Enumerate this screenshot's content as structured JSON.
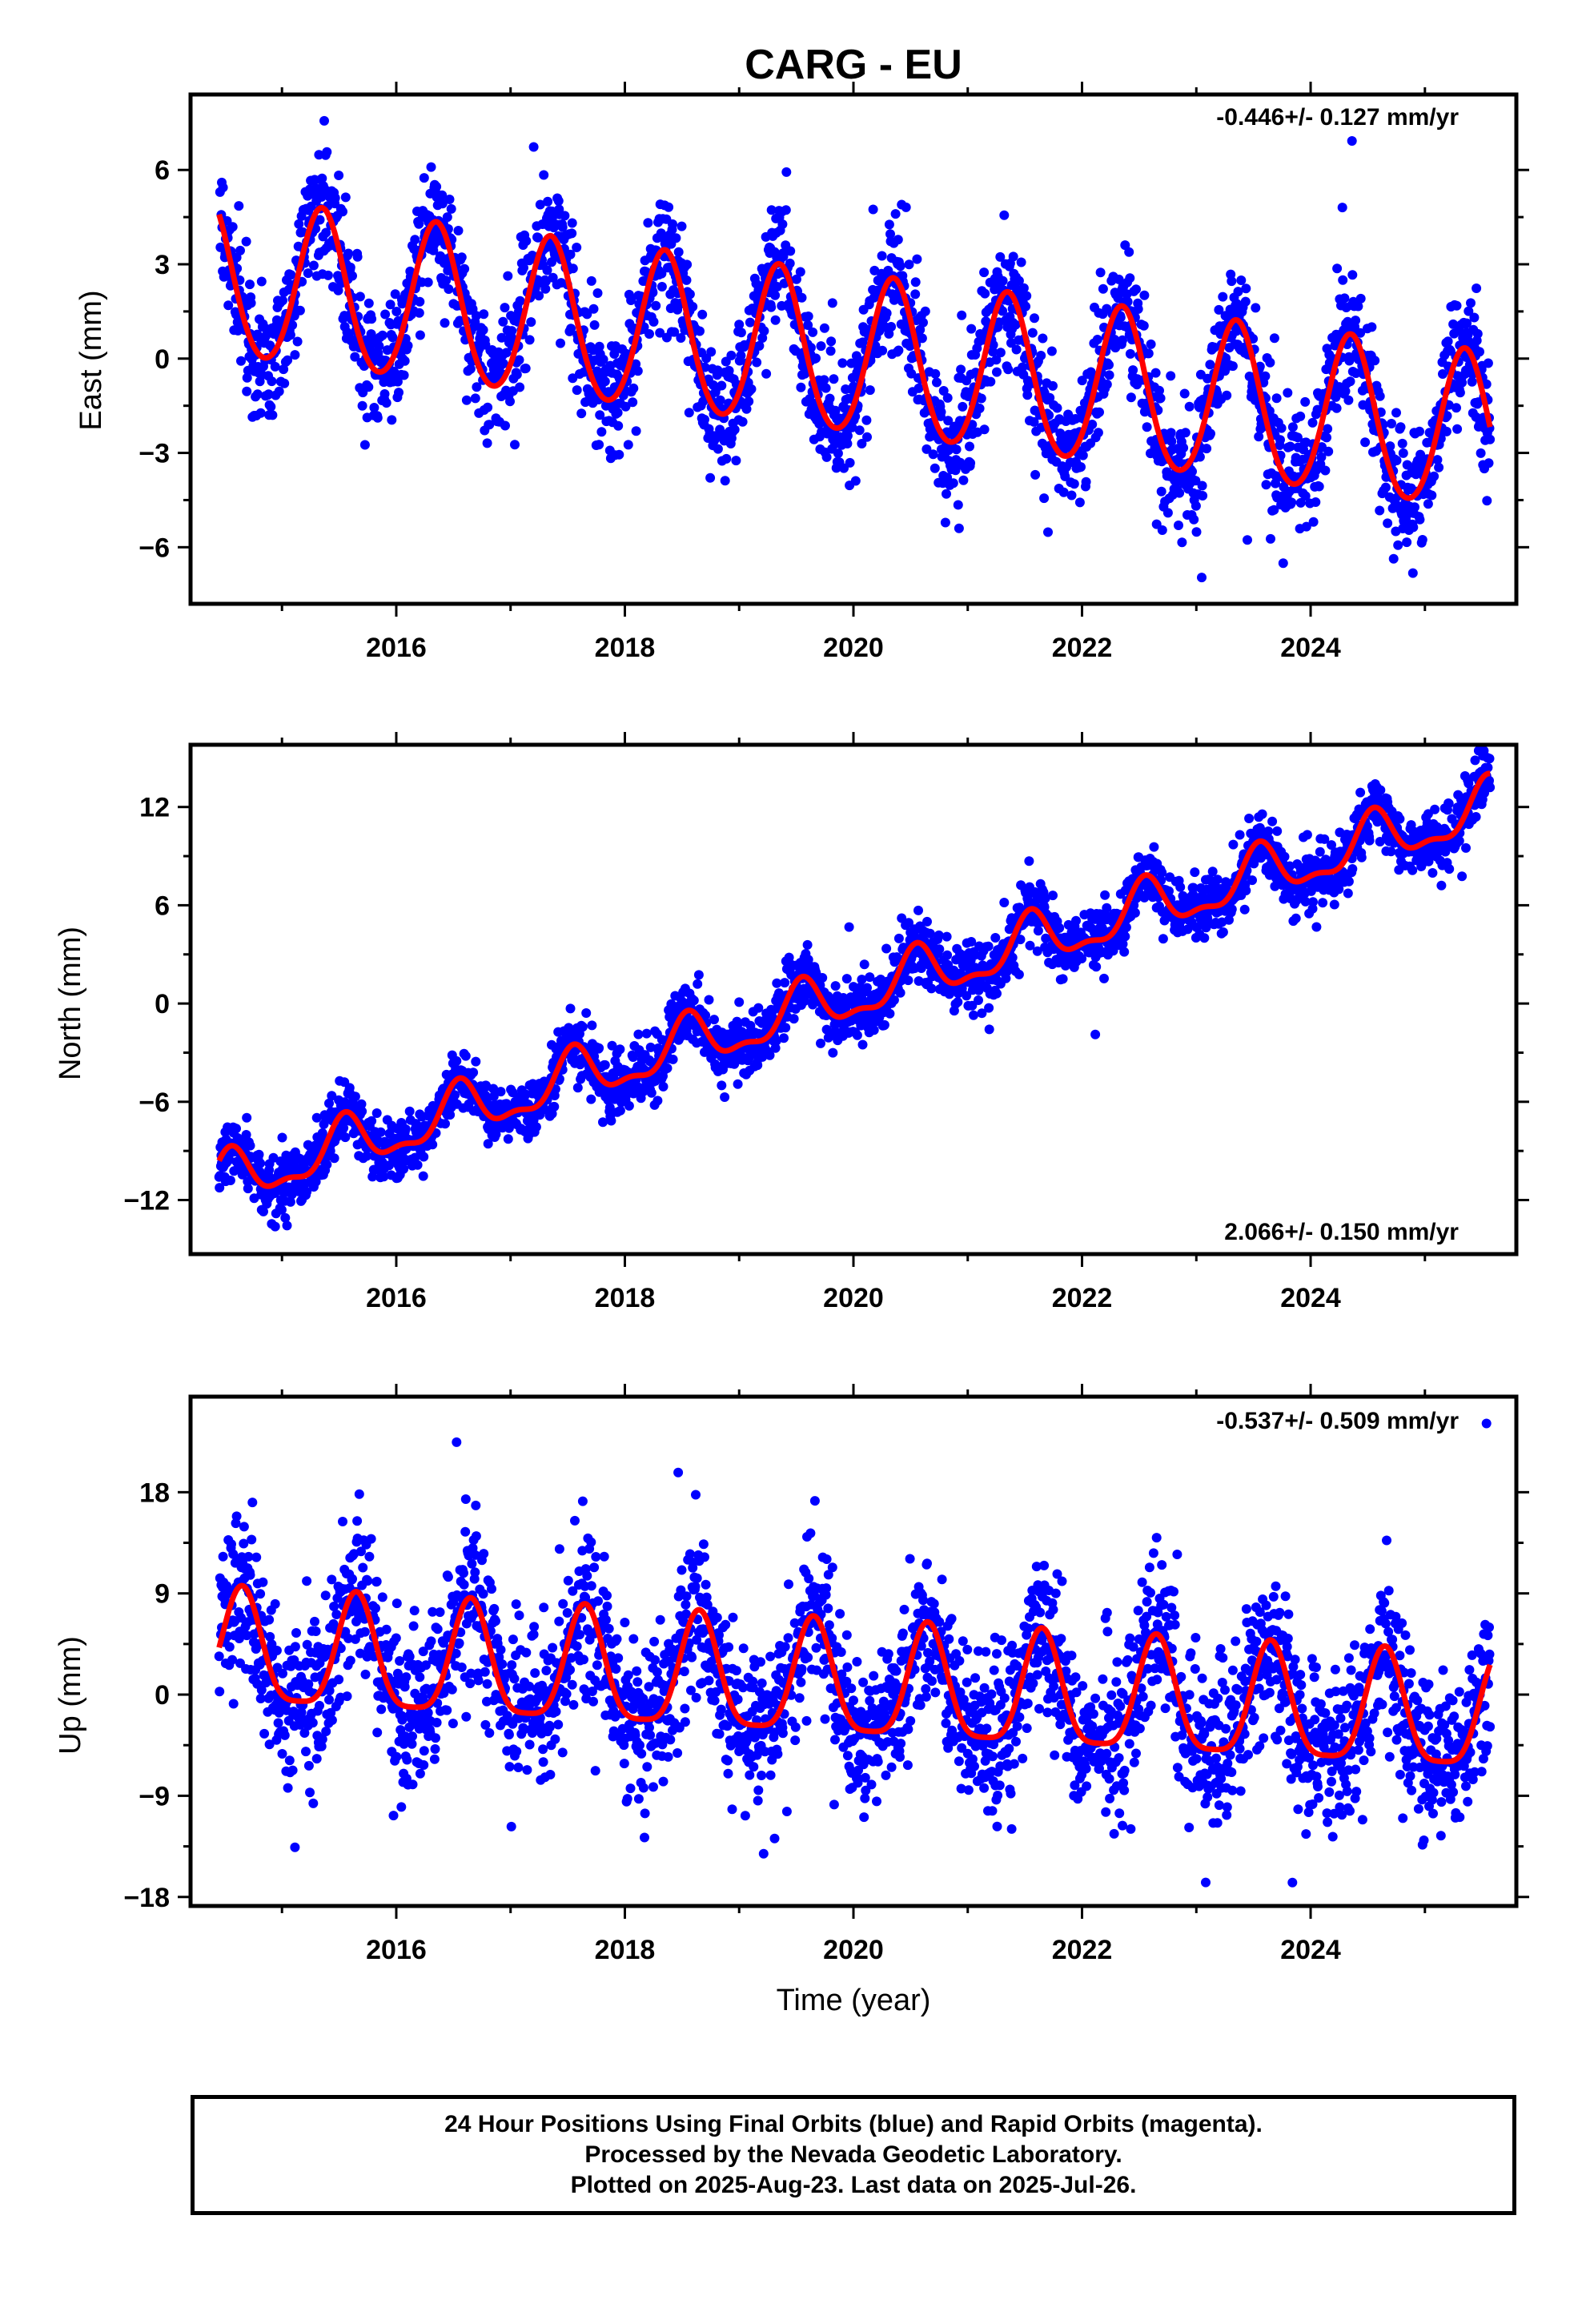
{
  "figure": {
    "title": "CARG - EU",
    "caption": [
      "24 Hour Positions Using Final Orbits (blue) and Rapid Orbits (magenta).",
      "Processed by the Nevada Geodetic Laboratory.",
      "Plotted on 2025-Aug-23. Last data on 2025-Jul-26."
    ],
    "colors": {
      "points": "#0000ff",
      "model": "#ff0000",
      "frame": "#000000"
    }
  },
  "chart_data": [
    {
      "type": "scatter",
      "title": "CARG - EU",
      "ylabel": "East (mm)",
      "xlabel": "",
      "xlim": [
        2014.2,
        2025.8
      ],
      "ylim": [
        -7.8,
        8.4
      ],
      "xticks": [
        2016,
        2018,
        2020,
        2022,
        2024
      ],
      "yticks": [
        6,
        3,
        0,
        -3,
        -6
      ],
      "rate_label": "-0.446+/- 0.127 mm/yr",
      "rate_position": "top-right",
      "x_range": [
        2014.45,
        2025.57
      ],
      "model": {
        "offset": 2.5,
        "rate": -0.446,
        "ref_year": 2014.45,
        "annual_amplitude": 2.5,
        "annual_peak": 2014.35,
        "semiannual_amplitude": 0.2,
        "semiannual_peak": 2014.35
      },
      "scatter_sigma": 1.0,
      "series": [
        {
          "name": "Final Orbits (blue)",
          "kind": "points",
          "color": "#0000ff"
        },
        {
          "name": "",
          "kind": "model-line",
          "color": "#ff0000"
        }
      ]
    },
    {
      "type": "scatter",
      "ylabel": "North (mm)",
      "xlabel": "",
      "xlim": [
        2014.2,
        2025.8
      ],
      "ylim": [
        -15.3,
        15.8
      ],
      "xticks": [
        2016,
        2018,
        2020,
        2022,
        2024
      ],
      "yticks": [
        12,
        6,
        0,
        -6,
        -12
      ],
      "rate_label": "2.066+/- 0.150 mm/yr",
      "rate_position": "bottom-right",
      "x_range": [
        2014.45,
        2025.57
      ],
      "model": {
        "offset": -11.0,
        "rate": 2.066,
        "ref_year": 2014.45,
        "annual_amplitude": 1.5,
        "annual_peak": 2014.55,
        "semiannual_amplitude": 0.6,
        "semiannual_peak": 2014.55
      },
      "scatter_sigma": 0.9,
      "series": [
        {
          "name": "Final Orbits (blue)",
          "kind": "points",
          "color": "#0000ff"
        },
        {
          "name": "",
          "kind": "model-line",
          "color": "#ff0000"
        }
      ]
    },
    {
      "type": "scatter",
      "ylabel": "Up (mm)",
      "xlabel": "Time (year)",
      "xlim": [
        2014.2,
        2025.8
      ],
      "ylim": [
        -18.8,
        26.5
      ],
      "xticks": [
        2016,
        2018,
        2020,
        2022,
        2024
      ],
      "yticks": [
        18,
        9,
        0,
        -9,
        -18
      ],
      "rate_label": "-0.537+/- 0.509 mm/yr",
      "rate_position": "top-right",
      "x_range": [
        2014.45,
        2025.57
      ],
      "model": {
        "offset": 3.6,
        "rate": -0.537,
        "ref_year": 2014.45,
        "annual_amplitude": 5.0,
        "annual_peak": 2014.65,
        "semiannual_amplitude": 1.2,
        "semiannual_peak": 2014.65
      },
      "scatter_sigma": 3.6,
      "series": [
        {
          "name": "Final Orbits (blue)",
          "kind": "points",
          "color": "#0000ff"
        },
        {
          "name": "",
          "kind": "model-line",
          "color": "#ff0000"
        }
      ]
    }
  ]
}
